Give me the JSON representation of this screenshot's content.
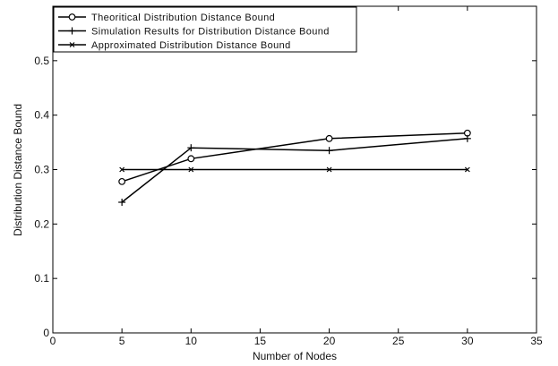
{
  "chart_data": {
    "type": "line",
    "title": "",
    "xlabel": "Number of Nodes",
    "ylabel": "Distribution Distance Bound",
    "xlim": [
      0,
      35
    ],
    "ylim": [
      0,
      0.6
    ],
    "x_ticks": [
      0,
      5,
      10,
      15,
      20,
      25,
      30,
      35
    ],
    "x_tick_labels": [
      "0",
      "5",
      "10",
      "15",
      "20",
      "25",
      "30",
      "35"
    ],
    "y_ticks": [
      0,
      0.1,
      0.2,
      0.3,
      0.4,
      0.5
    ],
    "y_tick_labels": [
      "0",
      "0.1",
      "0.2",
      "0.3",
      "0.4",
      "0.5"
    ],
    "grid": false,
    "legend_position": "top-left",
    "series": [
      {
        "name": "Theoritical Distribution Distance Bound",
        "marker": "circle",
        "color": "#000000",
        "x": [
          5,
          10,
          20,
          30
        ],
        "y": [
          0.278,
          0.32,
          0.357,
          0.367
        ]
      },
      {
        "name": "Simulation Results for Distribution Distance Bound",
        "marker": "plus",
        "color": "#000000",
        "x": [
          5,
          10,
          20,
          30
        ],
        "y": [
          0.24,
          0.34,
          0.335,
          0.357
        ]
      },
      {
        "name": "Approximated Distribution Distance Bound",
        "marker": "x",
        "color": "#000000",
        "x": [
          5,
          10,
          20,
          30
        ],
        "y": [
          0.3,
          0.3,
          0.3,
          0.3
        ]
      }
    ]
  }
}
